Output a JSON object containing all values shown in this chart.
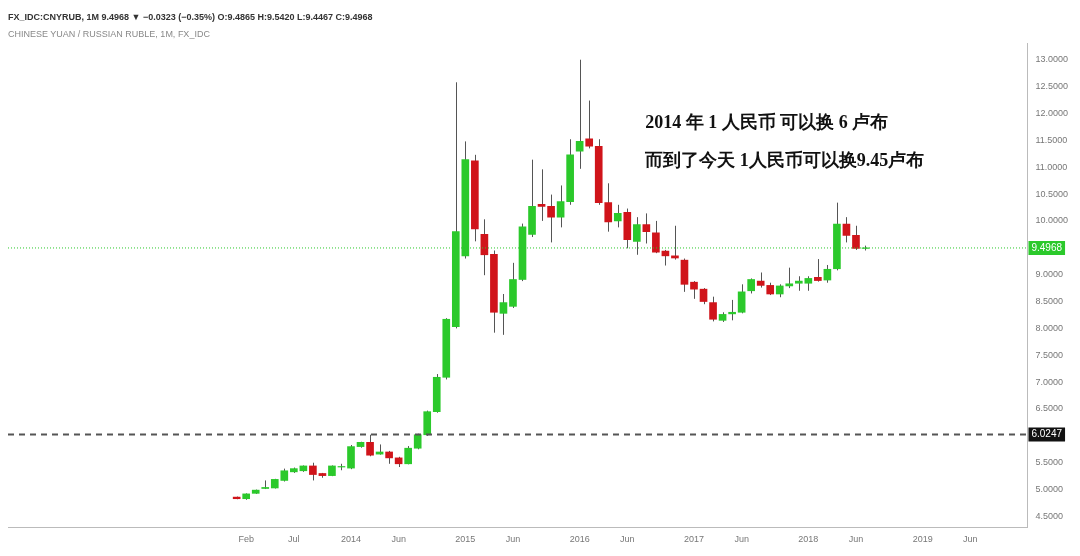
{
  "chart_data": {
    "type": "candlestick",
    "title": "CHINESE YUAN / RUSSIAN RUBLE, 1M, FX_IDC",
    "subtitle": "FX_IDC:CNYRUB, 1M 9.4968 ▼ −0.0323 (−0.35%) O:9.4865 H:9.5420 L:9.4467 C:9.4968",
    "annotations": [
      "2014 年 1 人民币 可以换 6 卢布",
      "而到了今天 1人民币可以换9.45卢布"
    ],
    "x": [
      "2013-01",
      "2013-02",
      "2013-03",
      "2013-04",
      "2013-05",
      "2013-06",
      "2013-07",
      "2013-08",
      "2013-09",
      "2013-10",
      "2013-11",
      "2013-12",
      "2014-01",
      "2014-02",
      "2014-03",
      "2014-04",
      "2014-05",
      "2014-06",
      "2014-07",
      "2014-08",
      "2014-09",
      "2014-10",
      "2014-11",
      "2014-12",
      "2015-01",
      "2015-02",
      "2015-03",
      "2015-04",
      "2015-05",
      "2015-06",
      "2015-07",
      "2015-08",
      "2015-09",
      "2015-10",
      "2015-11",
      "2015-12",
      "2016-01",
      "2016-02",
      "2016-03",
      "2016-04",
      "2016-05",
      "2016-06",
      "2016-07",
      "2016-08",
      "2016-09",
      "2016-10",
      "2016-11",
      "2016-12",
      "2017-01",
      "2017-02",
      "2017-03",
      "2017-04",
      "2017-05",
      "2017-06",
      "2017-07",
      "2017-08",
      "2017-09",
      "2017-10",
      "2017-11",
      "2017-12",
      "2018-01",
      "2018-02",
      "2018-03",
      "2018-04",
      "2018-05",
      "2018-06",
      "2018-07"
    ],
    "ohlc": [
      [
        4.86,
        4.87,
        4.82,
        4.83
      ],
      [
        4.83,
        4.93,
        4.81,
        4.92
      ],
      [
        4.93,
        5.0,
        4.92,
        4.99
      ],
      [
        5.02,
        5.17,
        5.01,
        5.04
      ],
      [
        5.03,
        5.2,
        5.02,
        5.19
      ],
      [
        5.17,
        5.39,
        5.15,
        5.35
      ],
      [
        5.33,
        5.41,
        5.31,
        5.39
      ],
      [
        5.35,
        5.45,
        5.33,
        5.44
      ],
      [
        5.44,
        5.5,
        5.17,
        5.28
      ],
      [
        5.3,
        5.31,
        5.22,
        5.26
      ],
      [
        5.26,
        5.45,
        5.25,
        5.44
      ],
      [
        5.42,
        5.48,
        5.36,
        5.43
      ],
      [
        5.4,
        5.83,
        5.38,
        5.8
      ],
      [
        5.8,
        5.89,
        5.78,
        5.88
      ],
      [
        5.88,
        6.02,
        5.62,
        5.64
      ],
      [
        5.66,
        5.84,
        5.65,
        5.7
      ],
      [
        5.7,
        5.72,
        5.48,
        5.59
      ],
      [
        5.59,
        5.61,
        5.42,
        5.48
      ],
      [
        5.48,
        5.81,
        5.47,
        5.77
      ],
      [
        5.77,
        6.04,
        5.75,
        6.02
      ],
      [
        6.02,
        6.47,
        6.0,
        6.45
      ],
      [
        6.45,
        7.15,
        6.43,
        7.09
      ],
      [
        7.09,
        8.19,
        7.05,
        8.17
      ],
      [
        8.03,
        12.58,
        8.0,
        9.8
      ],
      [
        9.35,
        11.48,
        9.3,
        11.14
      ],
      [
        11.12,
        11.23,
        9.62,
        9.85
      ],
      [
        9.75,
        10.03,
        8.99,
        9.37
      ],
      [
        9.38,
        9.45,
        7.92,
        8.3
      ],
      [
        8.28,
        8.64,
        7.88,
        8.48
      ],
      [
        8.41,
        9.22,
        8.38,
        8.91
      ],
      [
        8.91,
        9.95,
        8.88,
        9.89
      ],
      [
        9.75,
        11.14,
        9.7,
        10.27
      ],
      [
        10.31,
        10.96,
        10.0,
        10.27
      ],
      [
        10.27,
        10.49,
        9.6,
        10.07
      ],
      [
        10.07,
        10.66,
        9.88,
        10.36
      ],
      [
        10.36,
        11.52,
        10.3,
        11.23
      ],
      [
        11.3,
        13.0,
        10.97,
        11.48
      ],
      [
        11.53,
        12.24,
        11.35,
        11.39
      ],
      [
        11.39,
        11.52,
        10.3,
        10.34
      ],
      [
        10.34,
        10.7,
        9.8,
        9.98
      ],
      [
        10.0,
        10.3,
        9.88,
        10.14
      ],
      [
        10.16,
        10.23,
        9.49,
        9.65
      ],
      [
        9.62,
        10.07,
        9.37,
        9.93
      ],
      [
        9.93,
        10.14,
        9.58,
        9.8
      ],
      [
        9.78,
        10.0,
        9.4,
        9.42
      ],
      [
        9.44,
        9.46,
        9.17,
        9.35
      ],
      [
        9.35,
        9.91,
        9.28,
        9.31
      ],
      [
        9.27,
        9.3,
        8.68,
        8.82
      ],
      [
        8.86,
        8.88,
        8.55,
        8.73
      ],
      [
        8.73,
        8.75,
        8.45,
        8.5
      ],
      [
        8.48,
        8.59,
        8.13,
        8.17
      ],
      [
        8.15,
        8.3,
        8.12,
        8.26
      ],
      [
        8.27,
        8.53,
        8.15,
        8.3
      ],
      [
        8.3,
        8.82,
        8.28,
        8.68
      ],
      [
        8.7,
        8.93,
        8.65,
        8.91
      ],
      [
        8.88,
        9.04,
        8.76,
        8.8
      ],
      [
        8.8,
        8.85,
        8.62,
        8.64
      ],
      [
        8.64,
        8.82,
        8.58,
        8.79
      ],
      [
        8.79,
        9.13,
        8.75,
        8.83
      ],
      [
        8.84,
        8.97,
        8.7,
        8.88
      ],
      [
        8.84,
        8.97,
        8.7,
        8.93
      ],
      [
        8.95,
        9.29,
        8.87,
        8.89
      ],
      [
        8.9,
        9.18,
        8.85,
        9.1
      ],
      [
        9.11,
        10.34,
        9.08,
        9.94
      ],
      [
        9.94,
        10.07,
        9.6,
        9.73
      ],
      [
        9.73,
        9.91,
        9.46,
        9.49
      ],
      [
        9.49,
        9.54,
        9.45,
        9.5
      ]
    ],
    "colors": [
      "#d0141a",
      "#2bc92b",
      "#2bc92b",
      "#2bc92b",
      "#2bc92b",
      "#2bc92b",
      "#2bc92b",
      "#2bc92b",
      "#d0141a",
      "#d0141a",
      "#2bc92b",
      "#2bc92b",
      "#2bc92b",
      "#2bc92b",
      "#d0141a",
      "#2bc92b",
      "#d0141a",
      "#d0141a",
      "#2bc92b",
      "#2bc92b",
      "#2bc92b",
      "#2bc92b",
      "#2bc92b",
      "#2bc92b",
      "#2bc92b",
      "#d0141a",
      "#d0141a",
      "#d0141a",
      "#2bc92b",
      "#2bc92b",
      "#2bc92b",
      "#2bc92b",
      "#d0141a",
      "#d0141a",
      "#2bc92b",
      "#2bc92b",
      "#2bc92b",
      "#d0141a",
      "#d0141a",
      "#d0141a",
      "#2bc92b",
      "#d0141a",
      "#2bc92b",
      "#d0141a",
      "#d0141a",
      "#d0141a",
      "#d0141a",
      "#d0141a",
      "#d0141a",
      "#d0141a",
      "#d0141a",
      "#2bc92b",
      "#2bc92b",
      "#2bc92b",
      "#2bc92b",
      "#d0141a",
      "#d0141a",
      "#2bc92b",
      "#2bc92b",
      "#2bc92b",
      "#2bc92b",
      "#d0141a",
      "#2bc92b",
      "#2bc92b",
      "#d0141a",
      "#d0141a",
      "#2bc92b"
    ],
    "xlim": [
      "2011-01",
      "2019-12"
    ],
    "xticks": [
      {
        "value": "2013-02",
        "label": "Feb"
      },
      {
        "value": "2013-07",
        "label": "Jul"
      },
      {
        "value": "2014-01",
        "label": "2014"
      },
      {
        "value": "2014-06",
        "label": "Jun"
      },
      {
        "value": "2015-01",
        "label": "2015"
      },
      {
        "value": "2015-06",
        "label": "Jun"
      },
      {
        "value": "2016-01",
        "label": "2016"
      },
      {
        "value": "2016-06",
        "label": "Jun"
      },
      {
        "value": "2017-01",
        "label": "2017"
      },
      {
        "value": "2017-06",
        "label": "Jun"
      },
      {
        "value": "2018-01",
        "label": "2018"
      },
      {
        "value": "2018-06",
        "label": "Jun"
      },
      {
        "value": "2019-01",
        "label": "2019"
      },
      {
        "value": "2019-06",
        "label": "Jun"
      }
    ],
    "ylim": [
      4.3,
      13.3
    ],
    "yticks": [
      {
        "value": 4.5,
        "label": "4.5000"
      },
      {
        "value": 5,
        "label": "5.0000"
      },
      {
        "value": 5.5,
        "label": "5.5000"
      },
      {
        "value": 6,
        "label": null
      },
      {
        "value": 6.5,
        "label": "6.5000"
      },
      {
        "value": 7,
        "label": "7.0000"
      },
      {
        "value": 7.5,
        "label": "7.5000"
      },
      {
        "value": 8,
        "label": "8.0000"
      },
      {
        "value": 8.5,
        "label": "8.5000"
      },
      {
        "value": 9,
        "label": "9.0000"
      },
      {
        "value": 9.5,
        "label": null
      },
      {
        "value": 10,
        "label": "10.0000"
      },
      {
        "value": 10.5,
        "label": "10.5000"
      },
      {
        "value": 11,
        "label": "11.0000"
      },
      {
        "value": 11.5,
        "label": "11.5000"
      },
      {
        "value": 12,
        "label": "12.0000"
      },
      {
        "value": 12.5,
        "label": "12.5000"
      },
      {
        "value": 13,
        "label": "13.0000"
      }
    ],
    "ref_lines": [
      {
        "axis": "y",
        "value": 9.4968,
        "label": "9.4968",
        "color": "#2bc92b",
        "line_style": "dotted"
      },
      {
        "axis": "y",
        "value": 6.0247,
        "label": "6.0247",
        "color": "#555555",
        "line_style": "dashed"
      }
    ],
    "legend": false
  }
}
